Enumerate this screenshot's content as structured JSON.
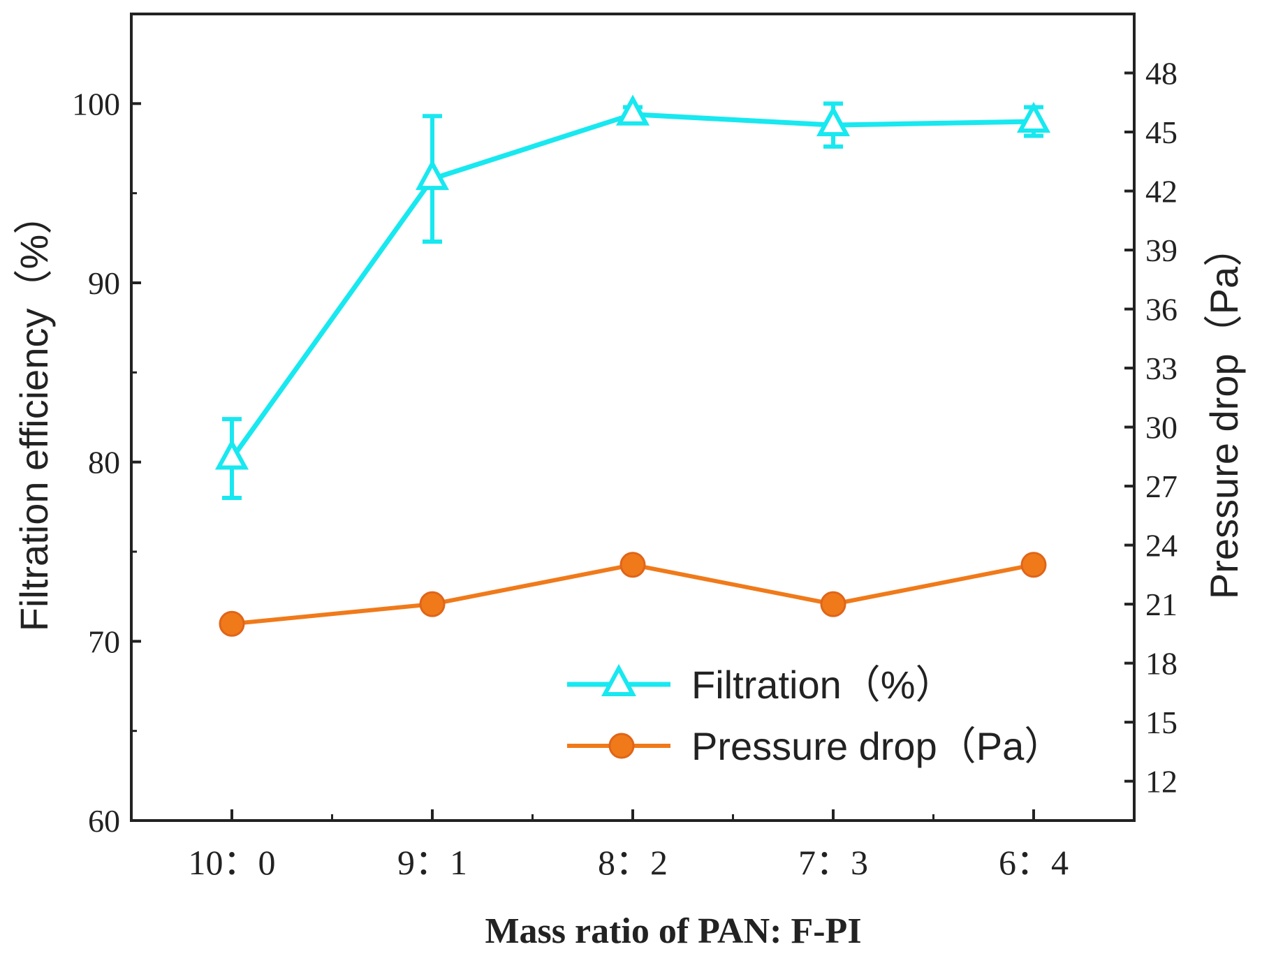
{
  "chart_data": {
    "type": "line",
    "categories": [
      "10：0",
      "9：1",
      "8：2",
      "7：3",
      "6：4"
    ],
    "xlabel": "Mass ratio of PAN: F-PI",
    "ylabel": "Filtration efficiency（%）",
    "ylabel_right": "Pressure drop（Pa）",
    "ylim": [
      60,
      105
    ],
    "ylim_right": [
      10,
      51
    ],
    "yticks": [
      60,
      70,
      80,
      90,
      100
    ],
    "yticks_right": [
      12,
      15,
      18,
      21,
      24,
      27,
      30,
      33,
      36,
      39,
      42,
      45,
      48
    ],
    "legend_position": "bottom-right",
    "series": [
      {
        "name": "Filtration（%）",
        "axis": "left",
        "color": "#18E8F0",
        "marker": "triangle",
        "values": [
          80.2,
          95.8,
          99.4,
          98.8,
          99.0
        ],
        "errors": [
          2.2,
          3.5,
          0.4,
          1.2,
          0.8
        ]
      },
      {
        "name": "Pressure drop（Pa）",
        "axis": "right",
        "color": "#F07A1A",
        "marker": "circle",
        "values": [
          20,
          21,
          23,
          21,
          23
        ]
      }
    ]
  }
}
